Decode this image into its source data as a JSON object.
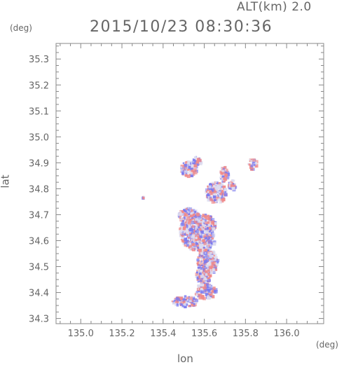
{
  "header": {
    "altitude": "ALT(km) 2.0",
    "timestamp": "2015/10/23 08:30:36"
  },
  "chart_data": {
    "type": "heatmap",
    "title": "2015/10/23 08:30:36",
    "subtitle": "ALT(km) 2.0",
    "xlabel": "lon",
    "ylabel": "lat",
    "x_unit": "(deg)",
    "y_unit": "(deg)",
    "xlim": [
      134.88,
      136.18
    ],
    "ylim": [
      34.28,
      35.36
    ],
    "x_ticks": [
      "135.0",
      "135.2",
      "135.4",
      "135.6",
      "135.8",
      "136.0"
    ],
    "y_ticks": [
      "34.3",
      "34.4",
      "34.5",
      "34.6",
      "34.7",
      "34.8",
      "34.9",
      "35.0",
      "35.1",
      "35.2",
      "35.3"
    ],
    "grid": false,
    "colors": {
      "positive": "#f08a8a",
      "negative": "#7a7af0",
      "neutral": "#dcdcf0",
      "axis": "#888888"
    },
    "clusters": [
      {
        "lon": 135.545,
        "lat": 34.64,
        "rlon": 0.07,
        "rlat": 0.07
      },
      {
        "lon": 135.585,
        "lat": 34.61,
        "rlon": 0.06,
        "rlat": 0.05
      },
      {
        "lon": 135.6,
        "lat": 34.665,
        "rlon": 0.05,
        "rlat": 0.04
      },
      {
        "lon": 135.52,
        "lat": 34.7,
        "rlon": 0.05,
        "rlat": 0.03
      },
      {
        "lon": 135.61,
        "lat": 34.52,
        "rlon": 0.05,
        "rlat": 0.05
      },
      {
        "lon": 135.59,
        "lat": 34.47,
        "rlon": 0.04,
        "rlat": 0.03
      },
      {
        "lon": 135.6,
        "lat": 34.41,
        "rlon": 0.05,
        "rlat": 0.03
      },
      {
        "lon": 135.5,
        "lat": 34.37,
        "rlon": 0.06,
        "rlat": 0.02
      },
      {
        "lon": 135.65,
        "lat": 34.79,
        "rlon": 0.05,
        "rlat": 0.04
      },
      {
        "lon": 135.69,
        "lat": 34.86,
        "rlon": 0.02,
        "rlat": 0.03
      },
      {
        "lon": 135.52,
        "lat": 34.88,
        "rlon": 0.04,
        "rlat": 0.03
      },
      {
        "lon": 135.83,
        "lat": 34.9,
        "rlon": 0.02,
        "rlat": 0.02
      },
      {
        "lon": 135.73,
        "lat": 34.82,
        "rlon": 0.02,
        "rlat": 0.02
      },
      {
        "lon": 135.3,
        "lat": 34.77,
        "rlon": 0.005,
        "rlat": 0.005
      },
      {
        "lon": 135.56,
        "lat": 34.91,
        "rlon": 0.02,
        "rlat": 0.02
      }
    ]
  }
}
